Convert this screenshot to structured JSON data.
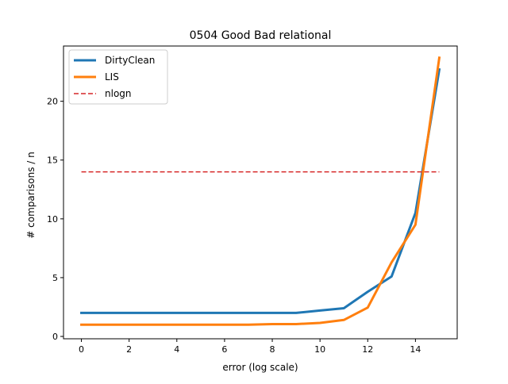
{
  "chart_data": {
    "type": "line",
    "title": "0504 Good Bad relational",
    "xlabel": "error (log scale)",
    "ylabel": "# comparisons / n",
    "xlim": [
      -0.75,
      15.75
    ],
    "ylim": [
      -0.2,
      24.7
    ],
    "x_ticks": [
      0,
      2,
      4,
      6,
      8,
      10,
      12,
      14
    ],
    "y_ticks": [
      0,
      5,
      10,
      15,
      20
    ],
    "grid": false,
    "legend_position": "upper-left",
    "series": [
      {
        "name": "DirtyClean",
        "color": "#1f77b4",
        "style": "solid",
        "x": [
          0,
          1,
          2,
          3,
          4,
          5,
          6,
          7,
          8,
          9,
          10,
          11,
          12,
          13,
          14,
          15
        ],
        "values": [
          2.0,
          2.0,
          2.0,
          2.0,
          2.0,
          2.0,
          2.0,
          2.0,
          2.0,
          2.0,
          2.2,
          2.4,
          3.8,
          5.1,
          10.5,
          22.7
        ]
      },
      {
        "name": "LIS",
        "color": "#ff7f0e",
        "style": "solid",
        "x": [
          0,
          1,
          2,
          3,
          4,
          5,
          6,
          7,
          8,
          9,
          10,
          11,
          12,
          13,
          14,
          15
        ],
        "values": [
          1.0,
          1.0,
          1.0,
          1.0,
          1.0,
          1.0,
          1.0,
          1.0,
          1.05,
          1.05,
          1.15,
          1.4,
          2.45,
          6.3,
          9.5,
          23.7
        ]
      },
      {
        "name": "nlogn",
        "color": "#d62728",
        "style": "dashed",
        "x": [
          0,
          15
        ],
        "values": [
          14.0,
          14.0
        ]
      }
    ]
  }
}
